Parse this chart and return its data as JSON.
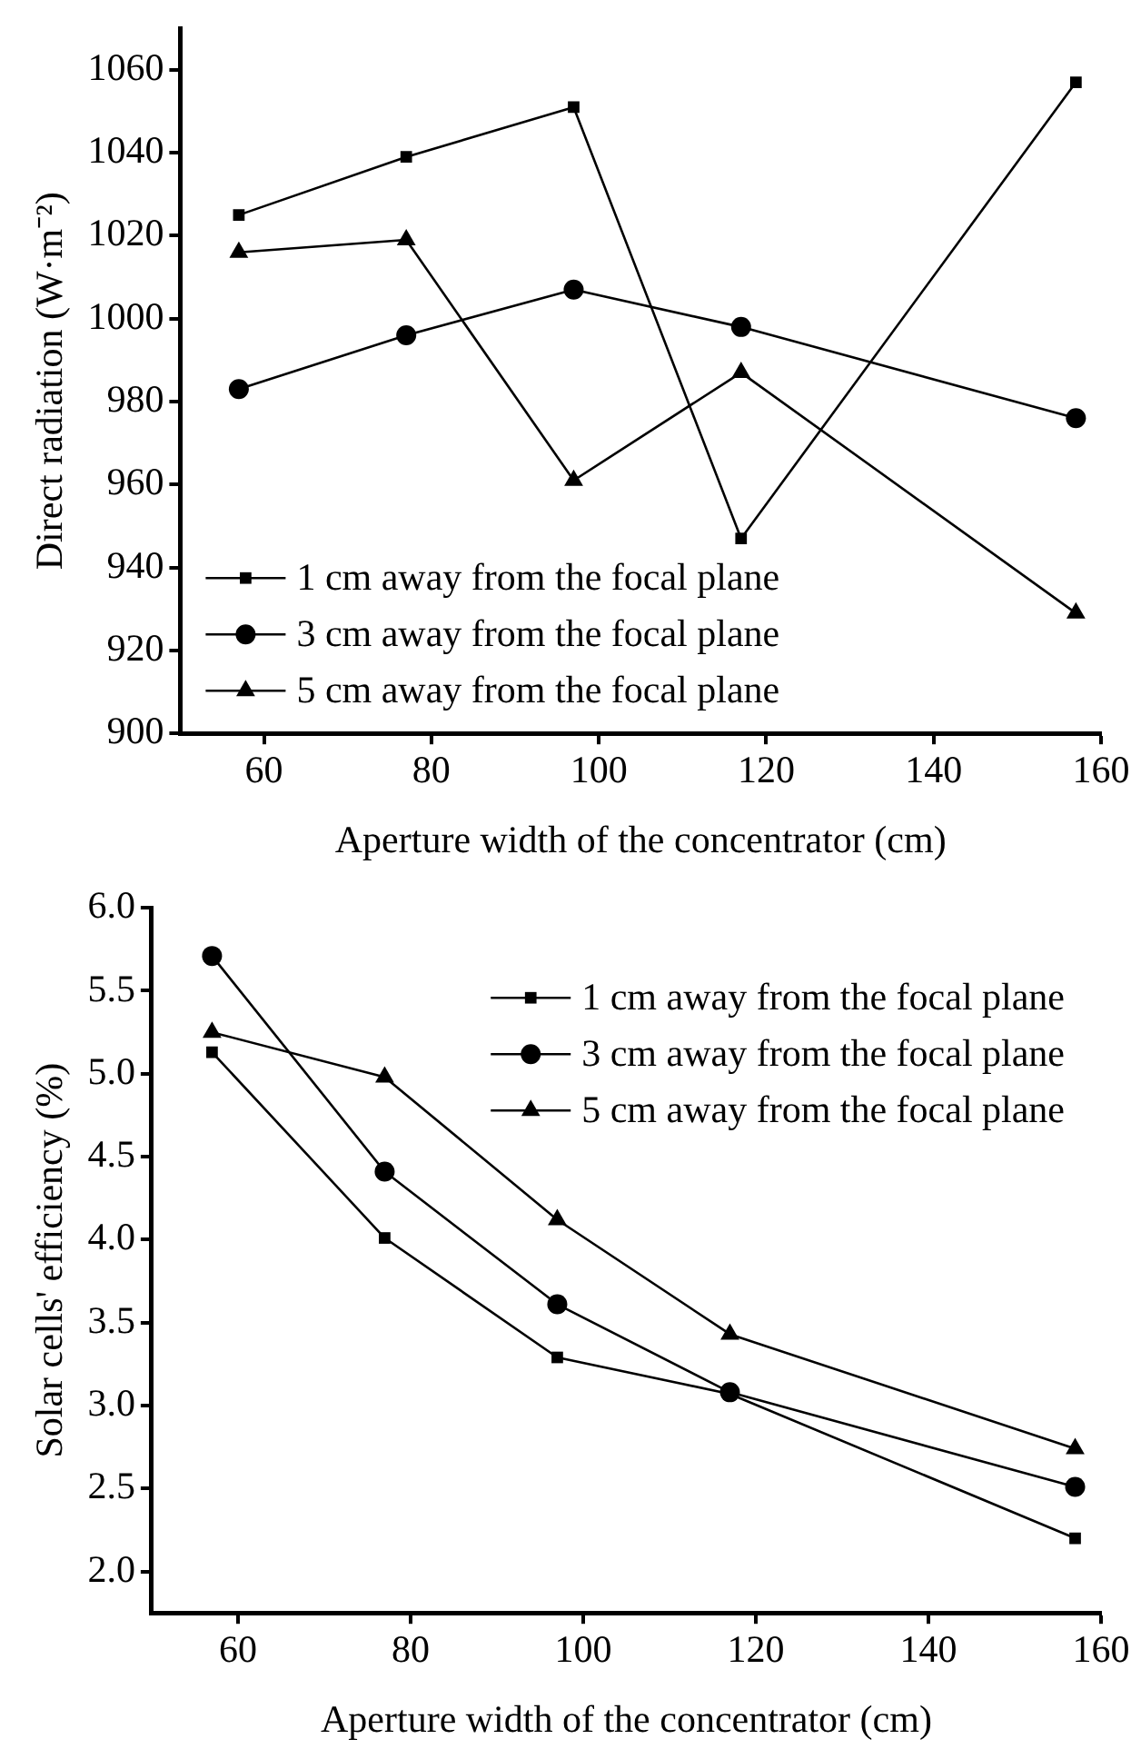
{
  "chart_data": [
    {
      "type": "line",
      "xlabel": "Aperture width of the concentrator (cm)",
      "ylabel": "Direct radiation (W·m⁻²)",
      "x": [
        57,
        77,
        97,
        117,
        157
      ],
      "xlim": [
        50,
        160
      ],
      "xticks": [
        60,
        80,
        100,
        120,
        140,
        160
      ],
      "ylim": [
        900,
        1070
      ],
      "yticks": [
        900,
        920,
        940,
        960,
        980,
        1000,
        1020,
        1040,
        1060
      ],
      "grid": false,
      "legend": "bottom left",
      "line_style": "solid",
      "series": [
        {
          "name": "1 cm away from the focal plane",
          "color": "#000000",
          "marker": "square",
          "values": [
            1025,
            1039,
            1051,
            947,
            1057
          ]
        },
        {
          "name": "3 cm away from the focal plane",
          "color": "#000000",
          "marker": "circle",
          "values": [
            983,
            996,
            1007,
            998,
            976
          ]
        },
        {
          "name": "5 cm away from the focal plane",
          "color": "#000000",
          "marker": "triangle",
          "values": [
            1016,
            1019,
            961,
            987,
            929
          ]
        }
      ]
    },
    {
      "type": "line",
      "xlabel": "Aperture width of the concentrator (cm)",
      "ylabel": "Solar cells' efficiency (%)",
      "x": [
        57,
        77,
        97,
        117,
        157
      ],
      "xlim": [
        50,
        160
      ],
      "xticks": [
        60,
        80,
        100,
        120,
        140,
        160
      ],
      "ylim": [
        1.75,
        6.0
      ],
      "yticks": [
        {
          "value": 2,
          "label": "2.0"
        },
        2.5,
        {
          "value": 3,
          "label": "3.0"
        },
        3.5,
        {
          "value": 4,
          "label": "4.0"
        },
        4.5,
        {
          "value": 5,
          "label": "5.0"
        },
        5.5,
        {
          "value": 6,
          "label": "6.0"
        }
      ],
      "grid": false,
      "legend": "top right",
      "line_style": "solid",
      "series": [
        {
          "name": "1 cm away from the focal plane",
          "color": "#000000",
          "marker": "square",
          "values": [
            5.13,
            4.01,
            3.29,
            3.07,
            2.2
          ]
        },
        {
          "name": "3 cm away from the focal plane",
          "color": "#000000",
          "marker": "circle",
          "values": [
            5.71,
            4.41,
            3.61,
            3.08,
            2.51
          ]
        },
        {
          "name": "5 cm away from the focal plane",
          "color": "#000000",
          "marker": "triangle",
          "values": [
            5.25,
            4.98,
            4.12,
            3.43,
            2.74
          ]
        }
      ]
    }
  ]
}
